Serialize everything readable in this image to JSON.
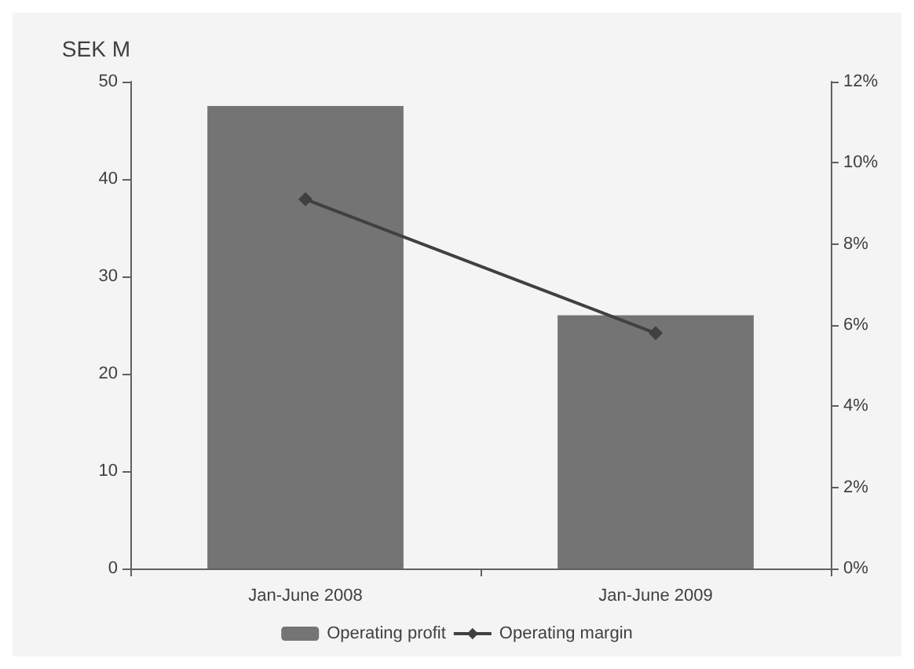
{
  "chart_data": {
    "type": "bar",
    "ylabel": "SEK M",
    "categories": [
      "Jan-June 2008",
      "Jan-June 2009"
    ],
    "series": [
      {
        "name": "Operating profit",
        "color": "#747474",
        "values": [
          47.5,
          26.0
        ]
      },
      {
        "name": "Operating margin",
        "type": "line",
        "axis": "y2",
        "color": "#404040",
        "marker": "diamond",
        "values": [
          9.1,
          5.8
        ]
      }
    ],
    "ylim": [
      0,
      50
    ],
    "yticks": [
      0,
      10,
      20,
      30,
      40,
      50
    ],
    "y2lim": [
      0,
      12
    ],
    "y2ticks": [
      {
        "value": 0,
        "label": "0%"
      },
      {
        "value": 2,
        "label": "2%"
      },
      {
        "value": 4,
        "label": "4%"
      },
      {
        "value": 6,
        "label": "6%"
      },
      {
        "value": 8,
        "label": "8%"
      },
      {
        "value": 10,
        "label": "10%"
      },
      {
        "value": 12,
        "label": "12%"
      }
    ],
    "grid": false,
    "legend": "bottom"
  }
}
